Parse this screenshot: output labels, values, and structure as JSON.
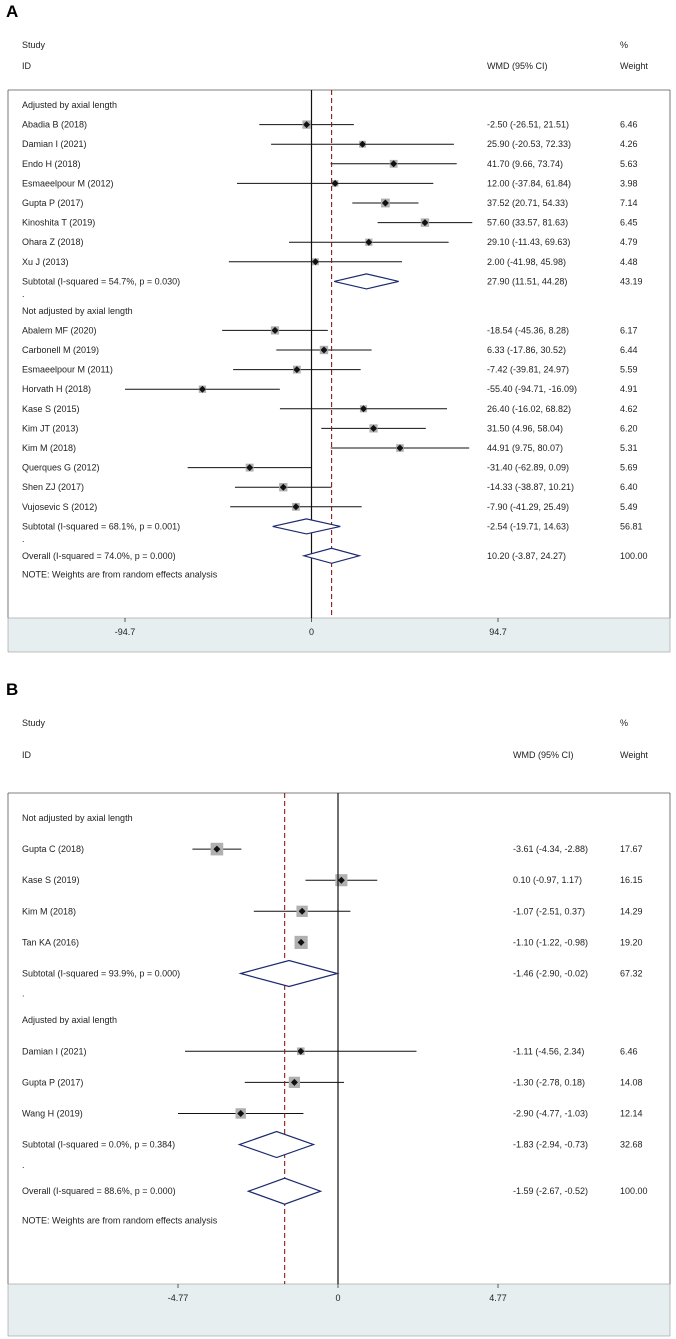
{
  "chart_data": [
    {
      "panel": "A",
      "type": "forest",
      "header": {
        "col1_line1": "Study",
        "col1_line2": "ID",
        "col2": "WMD (95% CI)",
        "col3_line1": "%",
        "col3_line2": "Weight"
      },
      "groups": [
        {
          "label": "Adjusted by axial length",
          "studies": [
            {
              "name": "Abadia B (2018)",
              "est": -2.5,
              "lo": -26.51,
              "hi": 21.51,
              "ci": "-2.50 (-26.51, 21.51)",
              "weight": "6.46"
            },
            {
              "name": "Damian I (2021)",
              "est": 25.9,
              "lo": -20.53,
              "hi": 72.33,
              "ci": "25.90 (-20.53, 72.33)",
              "weight": "4.26"
            },
            {
              "name": "Endo H (2018)",
              "est": 41.7,
              "lo": 9.66,
              "hi": 73.74,
              "ci": "41.70 (9.66, 73.74)",
              "weight": "5.63"
            },
            {
              "name": "Esmaeelpour M (2012)",
              "est": 12.0,
              "lo": -37.84,
              "hi": 61.84,
              "ci": "12.00 (-37.84, 61.84)",
              "weight": "3.98"
            },
            {
              "name": "Gupta P (2017)",
              "est": 37.52,
              "lo": 20.71,
              "hi": 54.33,
              "ci": "37.52 (20.71, 54.33)",
              "weight": "7.14"
            },
            {
              "name": "Kinoshita T (2019)",
              "est": 57.6,
              "lo": 33.57,
              "hi": 81.63,
              "ci": "57.60 (33.57, 81.63)",
              "weight": "6.45"
            },
            {
              "name": "Ohara Z (2018)",
              "est": 29.1,
              "lo": -11.43,
              "hi": 69.63,
              "ci": "29.10 (-11.43, 69.63)",
              "weight": "4.79"
            },
            {
              "name": "Xu J (2013)",
              "est": 2.0,
              "lo": -41.98,
              "hi": 45.98,
              "ci": "2.00 (-41.98, 45.98)",
              "weight": "4.48"
            }
          ],
          "subtotal": {
            "label": "Subtotal  (I-squared = 54.7%, p = 0.030)",
            "est": 27.9,
            "lo": 11.51,
            "hi": 44.28,
            "ci": "27.90 (11.51, 44.28)",
            "weight": "43.19"
          }
        },
        {
          "label": "Not adjusted by axial length",
          "studies": [
            {
              "name": "Abalem MF (2020)",
              "est": -18.54,
              "lo": -45.36,
              "hi": 8.28,
              "ci": "-18.54 (-45.36, 8.28)",
              "weight": "6.17"
            },
            {
              "name": "Carbonell M (2019)",
              "est": 6.33,
              "lo": -17.86,
              "hi": 30.52,
              "ci": "6.33 (-17.86, 30.52)",
              "weight": "6.44"
            },
            {
              "name": "Esmaeelpour M (2011)",
              "est": -7.42,
              "lo": -39.81,
              "hi": 24.97,
              "ci": "-7.42 (-39.81, 24.97)",
              "weight": "5.59"
            },
            {
              "name": "Horvath H (2018)",
              "est": -55.4,
              "lo": -94.71,
              "hi": -16.09,
              "ci": "-55.40 (-94.71, -16.09)",
              "weight": "4.91"
            },
            {
              "name": "Kase S (2015)",
              "est": 26.4,
              "lo": -16.02,
              "hi": 68.82,
              "ci": "26.40 (-16.02, 68.82)",
              "weight": "4.62"
            },
            {
              "name": "Kim JT (2013)",
              "est": 31.5,
              "lo": 4.96,
              "hi": 58.04,
              "ci": "31.50 (4.96, 58.04)",
              "weight": "6.20"
            },
            {
              "name": "Kim M (2018)",
              "est": 44.91,
              "lo": 9.75,
              "hi": 80.07,
              "ci": "44.91 (9.75, 80.07)",
              "weight": "5.31"
            },
            {
              "name": "Querques G (2012)",
              "est": -31.4,
              "lo": -62.89,
              "hi": 0.09,
              "ci": "-31.40 (-62.89, 0.09)",
              "weight": "5.69"
            },
            {
              "name": "Shen ZJ (2017)",
              "est": -14.33,
              "lo": -38.87,
              "hi": 10.21,
              "ci": "-14.33 (-38.87, 10.21)",
              "weight": "6.40"
            },
            {
              "name": "Vujosevic S (2012)",
              "est": -7.9,
              "lo": -41.29,
              "hi": 25.49,
              "ci": "-7.90 (-41.29, 25.49)",
              "weight": "5.49"
            }
          ],
          "subtotal": {
            "label": "Subtotal  (I-squared = 68.1%, p = 0.001)",
            "est": -2.54,
            "lo": -19.71,
            "hi": 14.63,
            "ci": "-2.54 (-19.71, 14.63)",
            "weight": "56.81"
          }
        }
      ],
      "overall": {
        "label": "Overall  (I-squared = 74.0%, p = 0.000)",
        "est": 10.2,
        "lo": -3.87,
        "hi": 24.27,
        "ci": "10.20 (-3.87, 24.27)",
        "weight": "100.00"
      },
      "note": "NOTE: Weights are from random effects analysis",
      "axis": {
        "min": -94.7,
        "max": 94.7,
        "ticks": [
          "-94.7",
          "0",
          "94.7"
        ],
        "tick_values": [
          -94.7,
          0,
          94.7
        ]
      },
      "separator": "."
    },
    {
      "panel": "B",
      "type": "forest",
      "header": {
        "col1_line1": "Study",
        "col1_line2": "ID",
        "col2": "WMD (95% CI)",
        "col3_line1": "%",
        "col3_line2": "Weight"
      },
      "groups": [
        {
          "label": "Not adjusted by axial length",
          "studies": [
            {
              "name": "Gupta C (2018)",
              "est": -3.61,
              "lo": -4.34,
              "hi": -2.88,
              "ci": "-3.61 (-4.34, -2.88)",
              "weight": "17.67"
            },
            {
              "name": "Kase S (2019)",
              "est": 0.1,
              "lo": -0.97,
              "hi": 1.17,
              "ci": "0.10 (-0.97, 1.17)",
              "weight": "16.15"
            },
            {
              "name": "Kim M (2018)",
              "est": -1.07,
              "lo": -2.51,
              "hi": 0.37,
              "ci": "-1.07 (-2.51, 0.37)",
              "weight": "14.29"
            },
            {
              "name": "Tan KA (2016)",
              "est": -1.1,
              "lo": -1.22,
              "hi": -0.98,
              "ci": "-1.10 (-1.22, -0.98)",
              "weight": "19.20"
            }
          ],
          "subtotal": {
            "label": "Subtotal  (I-squared = 93.9%, p = 0.000)",
            "est": -1.46,
            "lo": -2.9,
            "hi": -0.02,
            "ci": "-1.46 (-2.90, -0.02)",
            "weight": "67.32"
          }
        },
        {
          "label": "Adjusted by axial length",
          "studies": [
            {
              "name": "Damian I (2021)",
              "est": -1.11,
              "lo": -4.56,
              "hi": 2.34,
              "ci": "-1.11 (-4.56, 2.34)",
              "weight": "6.46"
            },
            {
              "name": "Gupta P (2017)",
              "est": -1.3,
              "lo": -2.78,
              "hi": 0.18,
              "ci": "-1.30 (-2.78, 0.18)",
              "weight": "14.08"
            },
            {
              "name": "Wang H (2019)",
              "est": -2.9,
              "lo": -4.77,
              "hi": -1.03,
              "ci": "-2.90 (-4.77, -1.03)",
              "weight": "12.14"
            }
          ],
          "subtotal": {
            "label": "Subtotal  (I-squared = 0.0%, p = 0.384)",
            "est": -1.83,
            "lo": -2.94,
            "hi": -0.73,
            "ci": "-1.83 (-2.94, -0.73)",
            "weight": "32.68"
          }
        }
      ],
      "overall": {
        "label": "Overall  (I-squared = 88.6%, p = 0.000)",
        "est": -1.59,
        "lo": -2.67,
        "hi": -0.52,
        "ci": "-1.59 (-2.67, -0.52)",
        "weight": "100.00"
      },
      "note": "NOTE: Weights are from random effects analysis",
      "axis": {
        "min": -4.77,
        "max": 4.77,
        "ticks": [
          "-4.77",
          "0",
          "4.77"
        ],
        "tick_values": [
          -4.77,
          0,
          4.77
        ]
      },
      "separator": "."
    }
  ],
  "panels": {
    "a_label": "A",
    "b_label": "B"
  },
  "colors": {
    "diamond": "#1c2a6e",
    "overall_line": "#8b1a1a",
    "marker": "#111111",
    "box": "#b0b0b0",
    "axis_band": "#e6eef0"
  }
}
